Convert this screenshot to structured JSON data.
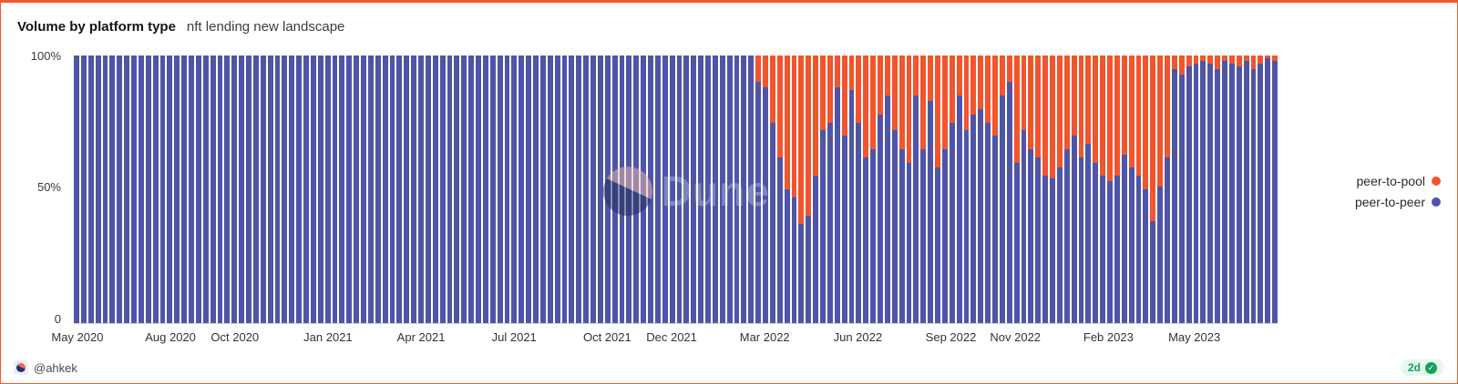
{
  "header": {
    "title": "Volume by platform type",
    "subtitle": "nft lending new landscape"
  },
  "watermark": {
    "text": "Dune"
  },
  "footer": {
    "author": "@ahkek",
    "refresh_badge": "2d",
    "badge_check": "✓"
  },
  "chart_data": {
    "type": "bar",
    "stacked": true,
    "percent_stacked": true,
    "title": "Volume by platform type",
    "xlabel": "",
    "ylabel": "",
    "ylim": [
      0,
      100
    ],
    "y_ticks": [
      "100%",
      "50%",
      "0"
    ],
    "x_unit": "week",
    "legend_position": "right",
    "x_ticks": [
      {
        "label": "May 2020",
        "index": 0
      },
      {
        "label": "Aug 2020",
        "index": 13
      },
      {
        "label": "Oct 2020",
        "index": 22
      },
      {
        "label": "Jan 2021",
        "index": 35
      },
      {
        "label": "Apr 2021",
        "index": 48
      },
      {
        "label": "Jul 2021",
        "index": 61
      },
      {
        "label": "Oct 2021",
        "index": 74
      },
      {
        "label": "Dec 2021",
        "index": 83
      },
      {
        "label": "Mar 2022",
        "index": 96
      },
      {
        "label": "Jun 2022",
        "index": 109
      },
      {
        "label": "Sep 2022",
        "index": 122
      },
      {
        "label": "Nov 2022",
        "index": 131
      },
      {
        "label": "Feb 2023",
        "index": 144
      },
      {
        "label": "May 2023",
        "index": 156
      }
    ],
    "series": [
      {
        "name": "peer-to-pool",
        "color": "#f2552d",
        "stack_role": "top",
        "values": [
          0,
          0,
          0,
          0,
          0,
          0,
          0,
          0,
          0,
          0,
          0,
          0,
          0,
          0,
          0,
          0,
          0,
          0,
          0,
          0,
          0,
          0,
          0,
          0,
          0,
          0,
          0,
          0,
          0,
          0,
          0,
          0,
          0,
          0,
          0,
          0,
          0,
          0,
          0,
          0,
          0,
          0,
          0,
          0,
          0,
          0,
          0,
          0,
          0,
          0,
          0,
          0,
          0,
          0,
          0,
          0,
          0,
          0,
          0,
          0,
          0,
          0,
          0,
          0,
          0,
          0,
          0,
          0,
          0,
          0,
          0,
          0,
          0,
          0,
          0,
          0,
          0,
          0,
          0,
          0,
          0,
          0,
          0,
          0,
          0,
          0,
          0,
          0,
          0,
          0,
          0,
          0,
          0,
          0,
          0,
          10,
          12,
          25,
          38,
          50,
          53,
          63,
          60,
          45,
          28,
          25,
          12,
          30,
          13,
          25,
          38,
          35,
          22,
          15,
          28,
          35,
          40,
          15,
          35,
          17,
          42,
          35,
          25,
          15,
          28,
          22,
          20,
          25,
          30,
          15,
          10,
          40,
          28,
          35,
          38,
          45,
          46,
          42,
          35,
          30,
          38,
          33,
          40,
          45,
          47,
          45,
          37,
          42,
          45,
          50,
          62,
          49,
          38,
          5,
          7,
          4,
          3,
          2,
          3,
          5,
          2,
          3,
          4,
          2,
          5,
          3,
          1,
          2
        ]
      },
      {
        "name": "peer-to-peer",
        "color": "#4f55a6",
        "stack_role": "bottom",
        "values": [
          100,
          100,
          100,
          100,
          100,
          100,
          100,
          100,
          100,
          100,
          100,
          100,
          100,
          100,
          100,
          100,
          100,
          100,
          100,
          100,
          100,
          100,
          100,
          100,
          100,
          100,
          100,
          100,
          100,
          100,
          100,
          100,
          100,
          100,
          100,
          100,
          100,
          100,
          100,
          100,
          100,
          100,
          100,
          100,
          100,
          100,
          100,
          100,
          100,
          100,
          100,
          100,
          100,
          100,
          100,
          100,
          100,
          100,
          100,
          100,
          100,
          100,
          100,
          100,
          100,
          100,
          100,
          100,
          100,
          100,
          100,
          100,
          100,
          100,
          100,
          100,
          100,
          100,
          100,
          100,
          100,
          100,
          100,
          100,
          100,
          100,
          100,
          100,
          100,
          100,
          100,
          100,
          100,
          100,
          100,
          90,
          88,
          75,
          62,
          50,
          47,
          37,
          40,
          55,
          72,
          75,
          88,
          70,
          87,
          75,
          62,
          65,
          78,
          85,
          72,
          65,
          60,
          85,
          65,
          83,
          58,
          65,
          75,
          85,
          72,
          78,
          80,
          75,
          70,
          85,
          90,
          60,
          72,
          65,
          62,
          55,
          54,
          58,
          65,
          70,
          62,
          67,
          60,
          55,
          53,
          55,
          63,
          58,
          55,
          50,
          38,
          51,
          62,
          95,
          93,
          96,
          97,
          98,
          97,
          95,
          98,
          97,
          96,
          98,
          95,
          97,
          99,
          98
        ]
      }
    ]
  }
}
